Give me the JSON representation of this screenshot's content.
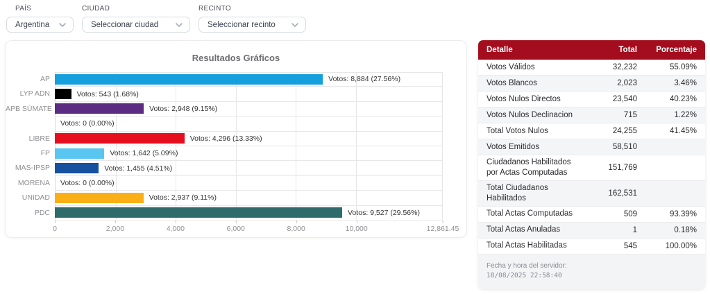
{
  "filters": {
    "pais": {
      "label": "PAÍS",
      "value": "Argentina"
    },
    "ciudad": {
      "label": "CIUDAD",
      "value": "Seleccionar ciudad"
    },
    "recinto": {
      "label": "RECINTO",
      "value": "Seleccionar recinto"
    }
  },
  "chart_data": {
    "type": "bar",
    "orientation": "horizontal",
    "title": "Resultados Gráficos",
    "xlabel": "",
    "ylabel": "",
    "xlim": [
      0,
      12861.45
    ],
    "grid": true,
    "categories": [
      "AP",
      "LYP ADN",
      "APB SÚMATE",
      "",
      "LIBRE",
      "FP",
      "MAS-IPSP",
      "MORENA",
      "UNIDAD",
      "PDC"
    ],
    "values": [
      8884,
      543,
      2948,
      0,
      4296,
      1642,
      1455,
      0,
      2937,
      9527
    ],
    "rows": [
      {
        "category": "AP",
        "value": 8884,
        "label": "Votos: 8,884 (27.56%)",
        "color": "#159fdd",
        "width": "69.08%"
      },
      {
        "category": "LYP ADN",
        "value": 543,
        "label": "Votos: 543 (1.68%)",
        "color": "#000000",
        "width": "4.22%"
      },
      {
        "category": "APB SÚMATE",
        "value": 2948,
        "label": "Votos: 2,948 (9.15%)",
        "color": "#5c2c82",
        "width": "22.92%"
      },
      {
        "category": "",
        "value": 0,
        "label": "Votos: 0 (0.00%)",
        "color": "#cccccc",
        "width": "0%"
      },
      {
        "category": "LIBRE",
        "value": 4296,
        "label": "Votos: 4,296 (13.33%)",
        "color": "#e60d1c",
        "width": "33.40%"
      },
      {
        "category": "FP",
        "value": 1642,
        "label": "Votos: 1,642 (5.09%)",
        "color": "#58c6f0",
        "width": "12.77%"
      },
      {
        "category": "MAS-IPSP",
        "value": 1455,
        "label": "Votos: 1,455 (4.51%)",
        "color": "#16519f",
        "width": "11.31%"
      },
      {
        "category": "MORENA",
        "value": 0,
        "label": "Votos: 0 (0.00%)",
        "color": "#cccccc",
        "width": "0%"
      },
      {
        "category": "UNIDAD",
        "value": 2937,
        "label": "Votos: 2,937 (9.11%)",
        "color": "#f9af15",
        "width": "22.84%"
      },
      {
        "category": "PDC",
        "value": 9527,
        "label": "Votos: 9,527 (29.56%)",
        "color": "#2e6c6b",
        "width": "74.07%"
      }
    ],
    "x_ticks": [
      {
        "label": "0",
        "pos": "0%"
      },
      {
        "label": "2,000",
        "pos": "15.55%"
      },
      {
        "label": "4,000",
        "pos": "31.10%"
      },
      {
        "label": "6,000",
        "pos": "46.65%"
      },
      {
        "label": "8,000",
        "pos": "62.20%"
      },
      {
        "label": "10,000",
        "pos": "77.76%"
      },
      {
        "label": "12,861.45",
        "pos": "100%"
      }
    ],
    "gridlines": [
      {
        "pos": "15.55%"
      },
      {
        "pos": "31.10%"
      },
      {
        "pos": "46.65%"
      },
      {
        "pos": "62.20%"
      },
      {
        "pos": "77.76%"
      }
    ]
  },
  "table": {
    "headers": [
      "Detalle",
      "Total",
      "Porcentaje"
    ],
    "header_color": "#a30d1e",
    "rows": [
      {
        "detalle": "Votos Válidos",
        "total": "32,232",
        "porcentaje": "55.09%"
      },
      {
        "detalle": "Votos Blancos",
        "total": "2,023",
        "porcentaje": "3.46%"
      },
      {
        "detalle": "Votos Nulos Directos",
        "total": "23,540",
        "porcentaje": "40.23%"
      },
      {
        "detalle": "Votos Nulos Declinacion",
        "total": "715",
        "porcentaje": "1.22%"
      },
      {
        "detalle": "Total Votos Nulos",
        "total": "24,255",
        "porcentaje": "41.45%"
      },
      {
        "detalle": "Votos Emitidos",
        "total": "58,510",
        "porcentaje": ""
      },
      {
        "detalle": "Ciudadanos Habilitados por Actas Computadas",
        "total": "151,769",
        "porcentaje": ""
      },
      {
        "detalle": "Total Ciudadanos Habilitados",
        "total": "162,531",
        "porcentaje": ""
      },
      {
        "detalle": "Total Actas Computadas",
        "total": "509",
        "porcentaje": "93.39%"
      },
      {
        "detalle": "Total Actas Anuladas",
        "total": "1",
        "porcentaje": "0.18%"
      },
      {
        "detalle": "Total Actas Habilitadas",
        "total": "545",
        "porcentaje": "100.00%"
      }
    ]
  },
  "server_time": {
    "caption": "Fecha y hora del servidor:",
    "datetime": "18/08/2025 22:58:40"
  }
}
